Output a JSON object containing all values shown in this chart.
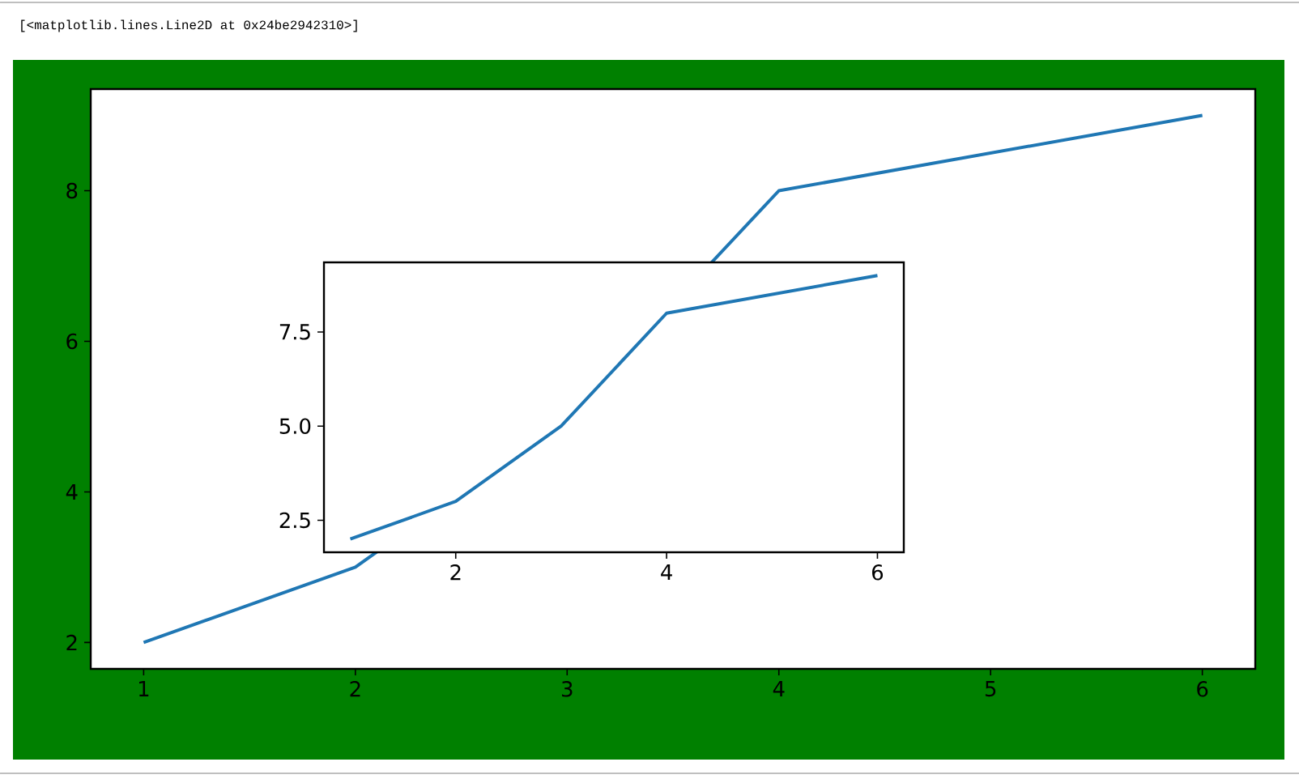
{
  "chart_data": [
    {
      "type": "line",
      "x": [
        1,
        2,
        3,
        4,
        6
      ],
      "values": [
        2,
        3,
        5,
        8,
        9
      ],
      "color": "#1f77b4",
      "xlim": [
        0.75,
        6.25
      ],
      "ylim": [
        1.65,
        9.35
      ],
      "xticks": [
        1,
        2,
        3,
        4,
        5,
        6
      ],
      "yticks": [
        2,
        4,
        6,
        8
      ],
      "annotations": [
        "[<matplotlib.lines.Line2D at 0x24be2942310>]"
      ]
    },
    {
      "type": "line",
      "x": [
        1,
        2,
        3,
        4,
        6
      ],
      "values": [
        2,
        3,
        5,
        8,
        9
      ],
      "color": "#1f77b4",
      "xlim": [
        0.75,
        6.25
      ],
      "ylim": [
        1.65,
        9.35
      ],
      "xticks": [
        2,
        4,
        6
      ],
      "yticks": [
        {
          "value": 2.5,
          "label": "2.5"
        },
        {
          "value": 5,
          "label": "5.0"
        },
        {
          "value": 7.5,
          "label": "7.5"
        }
      ]
    }
  ]
}
